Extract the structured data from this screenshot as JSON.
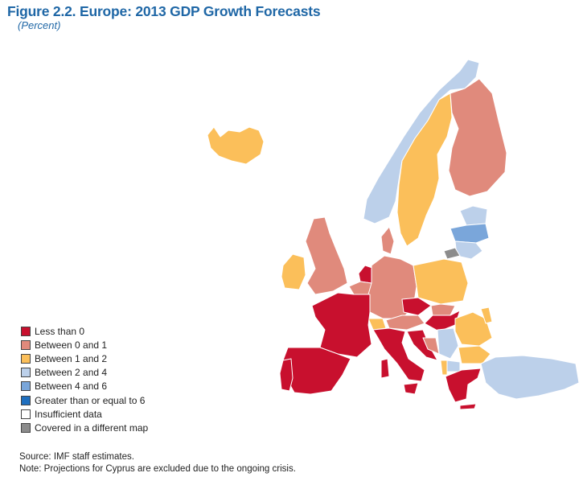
{
  "figure": {
    "title": "Figure 2.2.  Europe: 2013 GDP Growth Forecasts",
    "subtitle": "(Percent)"
  },
  "legend": {
    "items": [
      {
        "label": "Less than 0",
        "color": "#c8102e"
      },
      {
        "label": "Between 0 and 1",
        "color": "#e08a7c"
      },
      {
        "label": "Between 1 and 2",
        "color": "#fbbf5a"
      },
      {
        "label": "Between 2 and 4",
        "color": "#bcd0ea"
      },
      {
        "label": "Between 4 and 6",
        "color": "#7aa6da"
      },
      {
        "label": "Greater than or equal to 6",
        "color": "#1f6fbf"
      },
      {
        "label": "Insufficient data",
        "color": "#ffffff"
      },
      {
        "label": "Covered in a different map",
        "color": "#8c8c8c"
      }
    ]
  },
  "notes": {
    "source": "Source: IMF staff estimates.",
    "note": "Note: Projections for Cyprus are excluded due to the ongoing crisis."
  }
}
